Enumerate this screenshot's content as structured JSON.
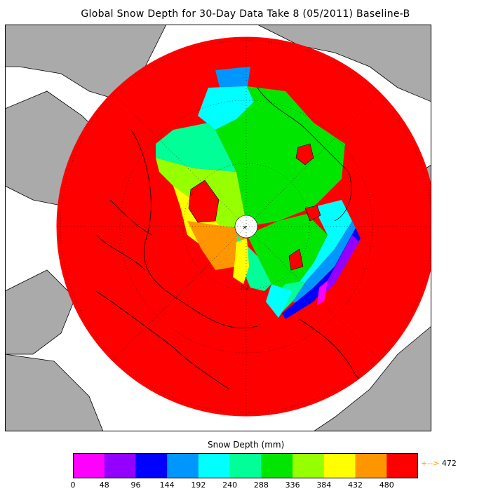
{
  "chart_data": {
    "type": "heatmap",
    "title": "Global Snow Depth for 30-Day Data Take 8 (05/2011) Baseline-B",
    "projection": "north polar stereographic",
    "latitude_labels": [
      "80"
    ],
    "colorbar": {
      "label": "Snow Depth (mm)",
      "ticks": [
        0,
        48,
        96,
        144,
        192,
        240,
        288,
        336,
        384,
        432,
        480
      ],
      "colors": [
        "#ff00ff",
        "#9400ff",
        "#0000ff",
        "#0096ff",
        "#00ffff",
        "#00ff96",
        "#00e600",
        "#96ff00",
        "#ffff00",
        "#ff9600",
        "#ff0000"
      ],
      "overflow_color": "#ff9600",
      "overflow_arrow": "+-->",
      "overflow_value": "472"
    },
    "colors": {
      "land": "#aaaaaa",
      "ocean": "#ffffff",
      "no_data_ring": "#ff0000"
    }
  }
}
